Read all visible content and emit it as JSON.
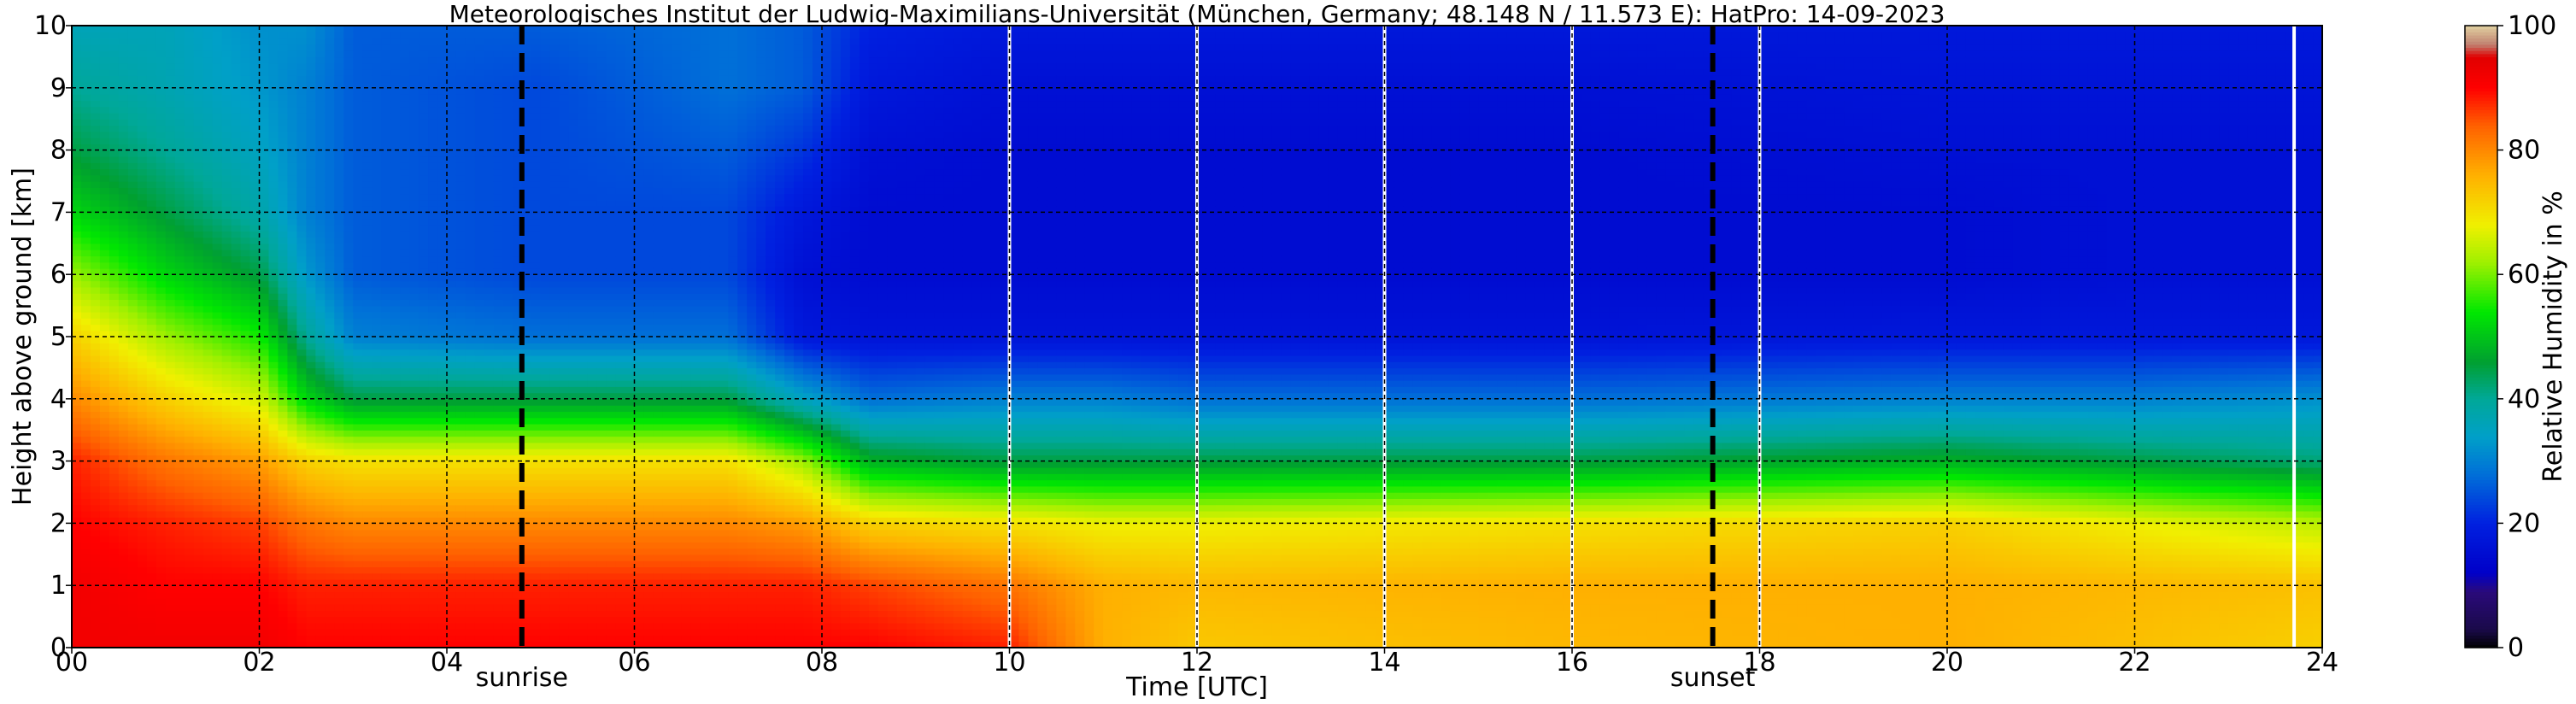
{
  "chart_data": {
    "type": "heatmap",
    "title": "Meteorologisches Institut der Ludwig-Maximilians-Universität (München, Germany; 48.148 N / 11.573 E):    HatPro: 14-09-2023",
    "xlabel": "Time [UTC]",
    "ylabel": "Height above ground [km]",
    "xlim": [
      0,
      24
    ],
    "ylim": [
      0,
      10
    ],
    "x_ticks": [
      "00",
      "02",
      "04",
      "06",
      "08",
      "10",
      "12",
      "14",
      "16",
      "18",
      "20",
      "22",
      "24"
    ],
    "y_ticks": [
      "0",
      "1",
      "2",
      "3",
      "4",
      "5",
      "6",
      "7",
      "8",
      "9",
      "10"
    ],
    "grid": true,
    "colorbar": {
      "label": "Relative Humidity in %",
      "range": [
        0,
        100
      ],
      "ticks": [
        "0",
        "20",
        "40",
        "60",
        "80",
        "100"
      ]
    },
    "annotations": [
      {
        "text": "sunrise",
        "x": 4.8
      },
      {
        "text": "sunset",
        "x": 17.5
      }
    ],
    "gap_times": [
      10.0,
      12.0,
      14.0,
      16.0,
      18.0,
      23.7
    ],
    "profiles": [
      {
        "time": 0.0,
        "rh": [
          92,
          92,
          90,
          88,
          80,
          72,
          62,
          52,
          45,
          40,
          36
        ]
      },
      {
        "time": 1.0,
        "rh": [
          92,
          90,
          88,
          82,
          72,
          62,
          52,
          45,
          40,
          37,
          36
        ]
      },
      {
        "time": 2.0,
        "rh": [
          92,
          90,
          86,
          78,
          66,
          55,
          45,
          38,
          35,
          33,
          32
        ]
      },
      {
        "time": 2.5,
        "rh": [
          90,
          88,
          82,
          72,
          52,
          40,
          33,
          30,
          30,
          30,
          32
        ]
      },
      {
        "time": 3.0,
        "rh": [
          90,
          88,
          80,
          70,
          45,
          30,
          26,
          26,
          26,
          26,
          26
        ]
      },
      {
        "time": 5.0,
        "rh": [
          90,
          88,
          80,
          70,
          45,
          28,
          24,
          24,
          24,
          24,
          26
        ]
      },
      {
        "time": 7.0,
        "rh": [
          90,
          88,
          80,
          70,
          45,
          28,
          24,
          24,
          26,
          28,
          28
        ]
      },
      {
        "time": 7.8,
        "rh": [
          90,
          88,
          78,
          62,
          35,
          18,
          16,
          18,
          22,
          26,
          26
        ]
      },
      {
        "time": 8.5,
        "rh": [
          90,
          86,
          72,
          48,
          28,
          17,
          15,
          15,
          16,
          18,
          20
        ]
      },
      {
        "time": 10.0,
        "rh": [
          88,
          82,
          70,
          45,
          30,
          17,
          15,
          15,
          15,
          16,
          18
        ]
      },
      {
        "time": 11.0,
        "rh": [
          76,
          76,
          68,
          45,
          30,
          17,
          15,
          15,
          15,
          16,
          18
        ]
      },
      {
        "time": 12.0,
        "rh": [
          73,
          75,
          68,
          45,
          28,
          17,
          15,
          15,
          15,
          16,
          18
        ]
      },
      {
        "time": 16.0,
        "rh": [
          75,
          76,
          70,
          45,
          28,
          17,
          15,
          15,
          15,
          16,
          18
        ]
      },
      {
        "time": 20.0,
        "rh": [
          76,
          76,
          72,
          48,
          30,
          18,
          15,
          15,
          16,
          17,
          18
        ]
      },
      {
        "time": 22.0,
        "rh": [
          74,
          75,
          68,
          45,
          30,
          18,
          16,
          16,
          16,
          17,
          18
        ]
      },
      {
        "time": 24.0,
        "rh": [
          72,
          74,
          64,
          42,
          32,
          18,
          16,
          16,
          16,
          17,
          18
        ]
      }
    ]
  }
}
